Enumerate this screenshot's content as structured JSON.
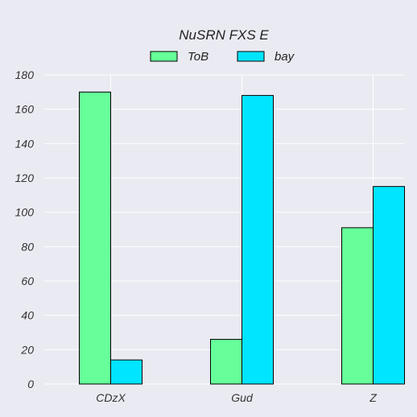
{
  "chart_data": {
    "type": "bar",
    "title": "NuSRN  FXS E",
    "xlabel": "",
    "ylabel": "",
    "categories": [
      "CDzX",
      "Gud",
      "Z"
    ],
    "series": [
      {
        "name": "ToB",
        "values": [
          170,
          26,
          91
        ],
        "color": "#66ff99"
      },
      {
        "name": "bay",
        "values": [
          14,
          168,
          115
        ],
        "color": "#00e5ff"
      }
    ],
    "ylim": [
      0,
      180
    ],
    "yticks": [
      0,
      20,
      40,
      60,
      80,
      100,
      120,
      140,
      160,
      180
    ],
    "grid": true,
    "legend": "top-center",
    "background": "#eaeaf2",
    "gridColor": "#ffffff"
  }
}
